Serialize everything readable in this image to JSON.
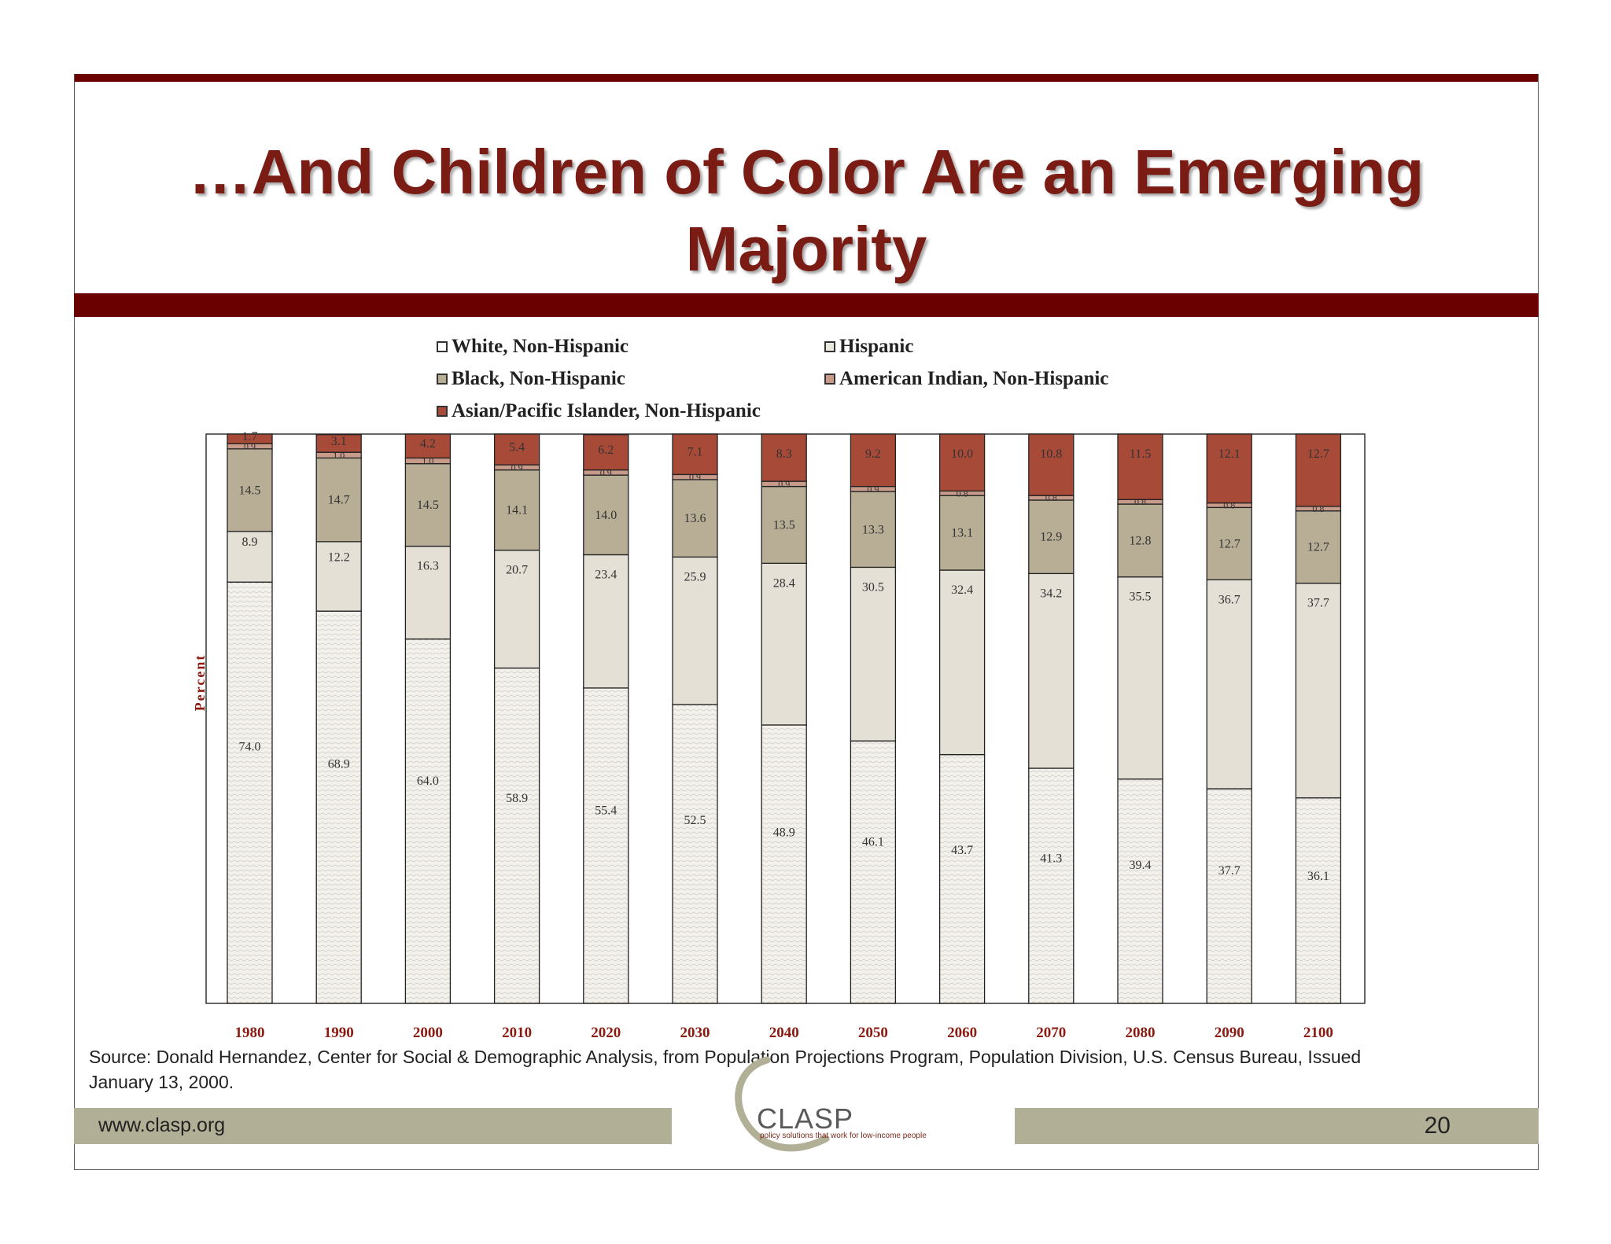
{
  "slide": {
    "title": "…And Children of Color Are an Emerging Majority",
    "source": "Source: Donald Hernandez, Center for Social & Demographic Analysis, from Population Projections Program, Population Division, U.S. Census Bureau, Issued January 13, 2000.",
    "footer_url": "www.clasp.org",
    "page_number": "20",
    "logo_text": "CLASP",
    "logo_tagline": "policy solutions that work for low-income people"
  },
  "colors": {
    "accent": "#6b0000",
    "title": "#7a1b14",
    "footer": "#b1af96",
    "white_non_hispanic": "#f3f1ec",
    "hispanic": "#e4e0d6",
    "black_non_hispanic": "#b8ae96",
    "american_indian": "#c79a8a",
    "asian_pacific": "#a84a38"
  },
  "chart_data": {
    "type": "bar",
    "stacked": true,
    "ylabel": "Percent",
    "ylim": [
      0,
      100
    ],
    "legend_position": "top",
    "categories": [
      "1980",
      "1990",
      "2000",
      "2010",
      "2020",
      "2030",
      "2040",
      "2050",
      "2060",
      "2070",
      "2080",
      "2090",
      "2100"
    ],
    "series": [
      {
        "name": "White, Non-Hispanic",
        "values": [
          74.0,
          68.9,
          64.0,
          58.9,
          55.4,
          52.5,
          48.9,
          46.1,
          43.7,
          41.3,
          39.4,
          37.7,
          36.1
        ]
      },
      {
        "name": "Hispanic",
        "values": [
          8.9,
          12.2,
          16.3,
          20.7,
          23.4,
          25.9,
          28.4,
          30.5,
          32.4,
          34.2,
          35.5,
          36.7,
          37.7
        ]
      },
      {
        "name": "Black, Non-Hispanic",
        "values": [
          14.5,
          14.7,
          14.5,
          14.1,
          14.0,
          13.6,
          13.5,
          13.3,
          13.1,
          12.9,
          12.8,
          12.7,
          12.7
        ]
      },
      {
        "name": "American Indian, Non-Hispanic",
        "values": [
          0.9,
          1.0,
          1.0,
          0.9,
          0.9,
          0.9,
          0.9,
          0.9,
          0.8,
          0.8,
          0.8,
          0.8,
          0.8
        ]
      },
      {
        "name": "Asian/Pacific Islander, Non-Hispanic",
        "values": [
          1.7,
          3.1,
          4.2,
          5.4,
          6.2,
          7.1,
          8.3,
          9.2,
          10.0,
          10.8,
          11.5,
          12.1,
          12.7
        ]
      }
    ]
  }
}
